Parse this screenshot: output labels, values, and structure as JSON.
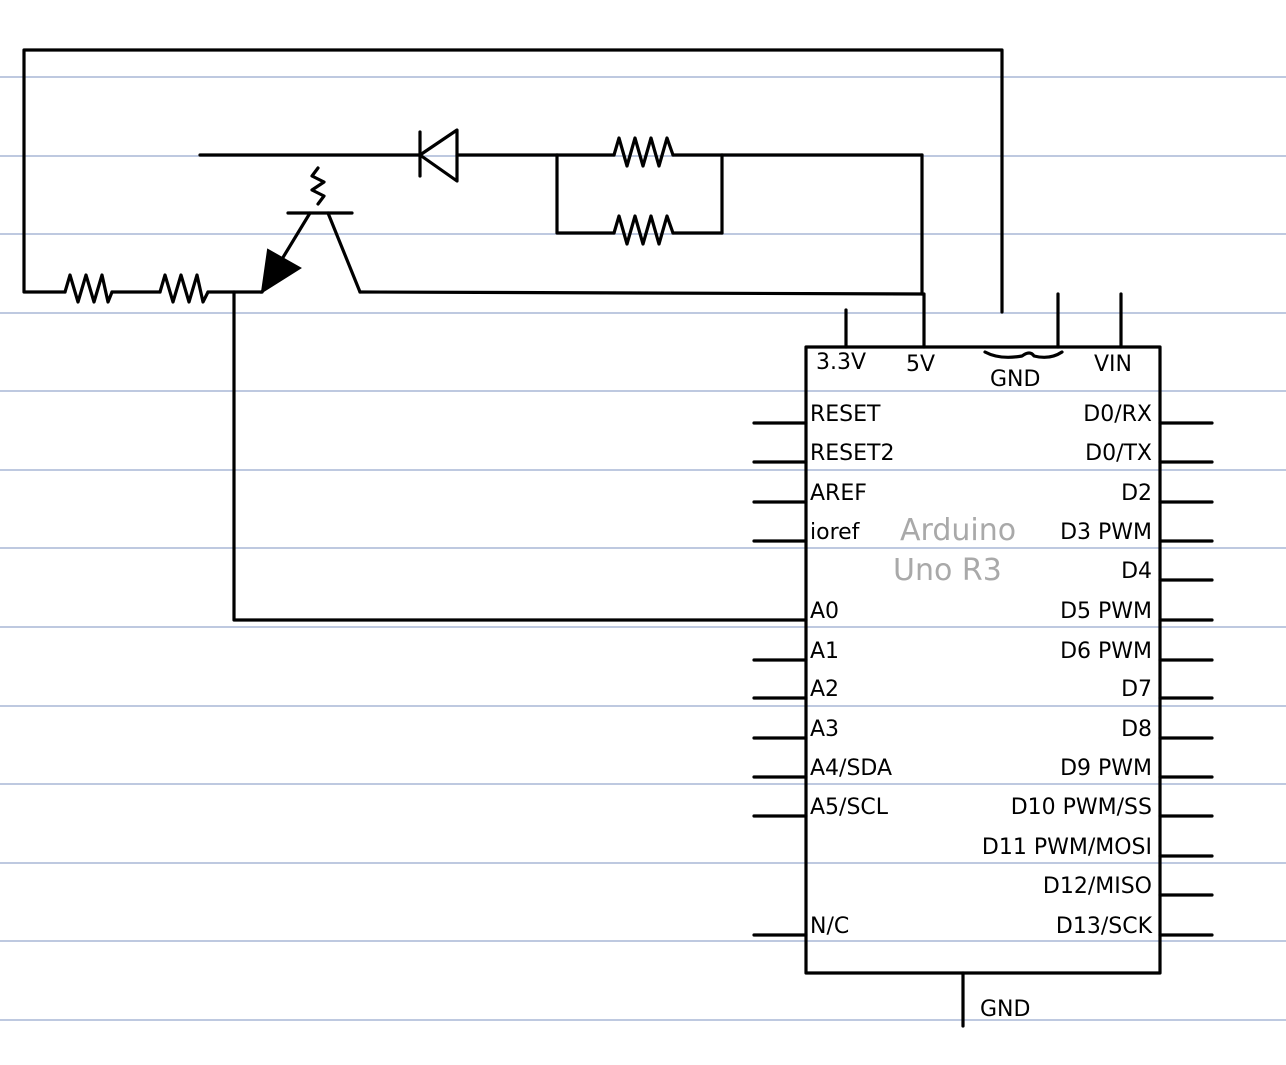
{
  "board": {
    "name_line1": "Arduino",
    "name_line2": "Uno R3",
    "top_pins": [
      "3.3V",
      "5V",
      "GND",
      "VIN"
    ],
    "left_pins": [
      "RESET",
      "RESET2",
      "AREF",
      "ioref",
      "A0",
      "A1",
      "A2",
      "A3",
      "A4/SDA",
      "A5/SCL",
      "N/C"
    ],
    "right_pins": [
      "D0/RX",
      "D0/TX",
      "D2",
      "D3 PWM",
      "D4",
      "D5 PWM",
      "D6 PWM",
      "D7",
      "D8",
      "D9 PWM",
      "D10 PWM/SS",
      "D11 PWM/MOSI",
      "D12/MISO",
      "D13/SCK"
    ],
    "bottom_pin": "GND"
  },
  "colors": {
    "ink": "#000000",
    "paper_rule": "#a9b7d6",
    "brand_text": "#a9a9a9"
  },
  "components": [
    "resistor",
    "resistor",
    "phototransistor",
    "diode",
    "resistor",
    "resistor"
  ]
}
